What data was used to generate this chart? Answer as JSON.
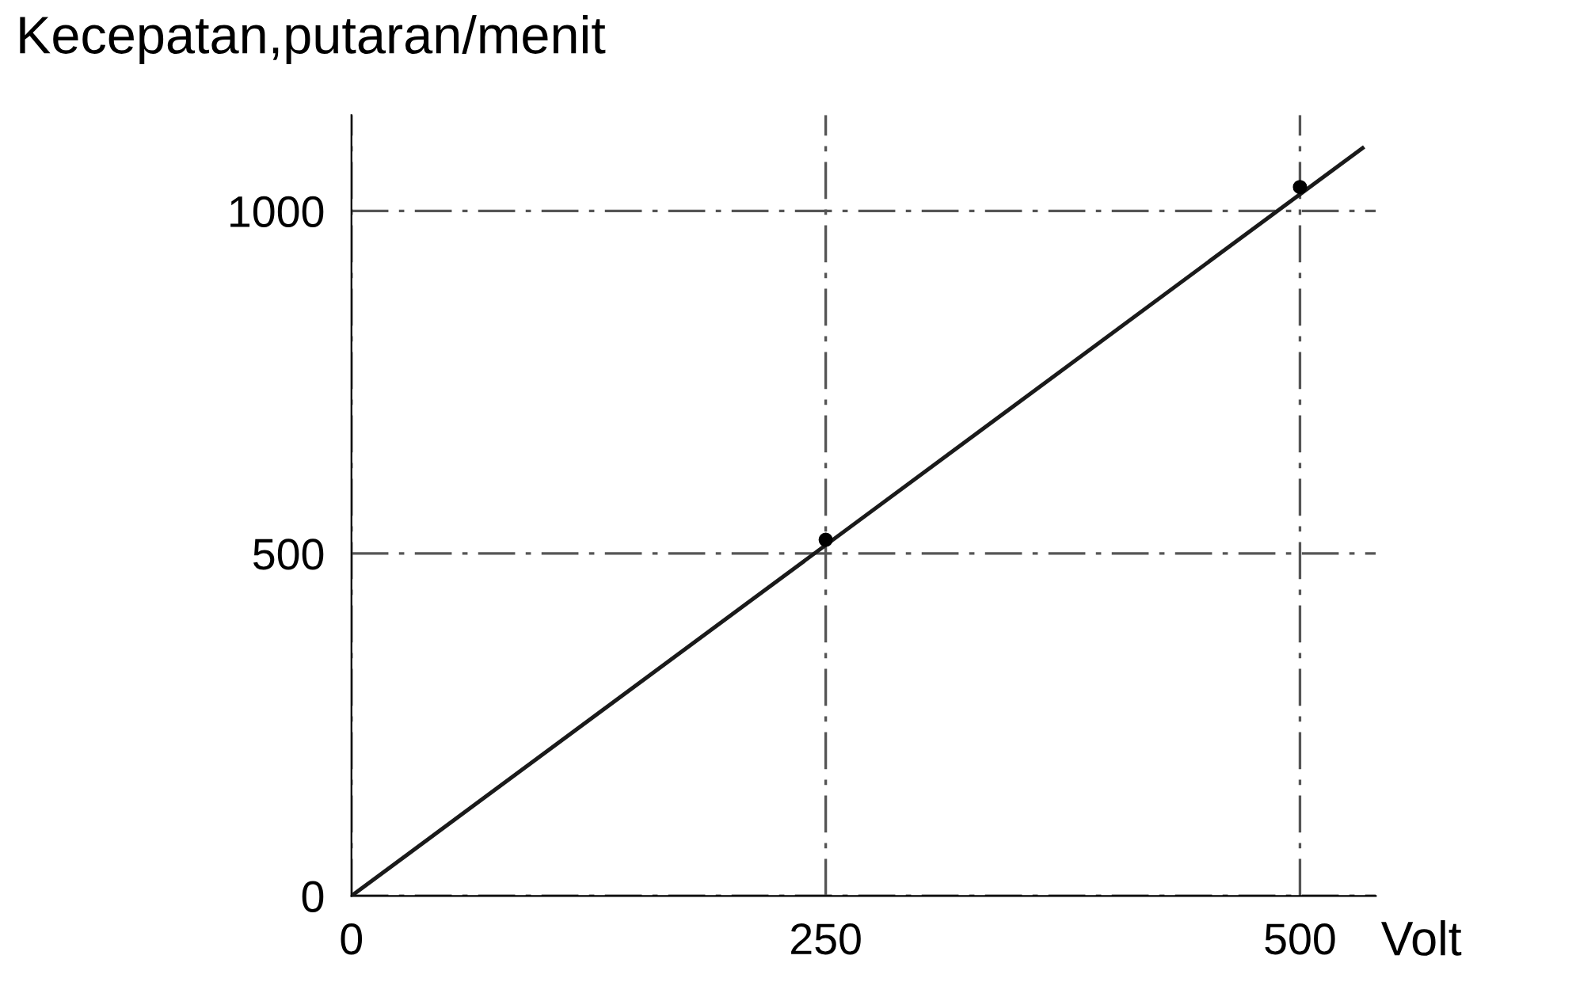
{
  "chart_data": {
    "type": "line",
    "xlabel": "Volt",
    "ylabel": "Kecepatan,putaran/menit",
    "series": [
      {
        "color": "#1a1a1a",
        "x": [
          0,
          533
        ],
        "values": [
          0,
          1092
        ]
      },
      {
        "type": "scatter",
        "color": "#000000",
        "x": [
          250,
          500
        ],
        "values": [
          520,
          1035
        ]
      }
    ],
    "xlim": [
      0,
      540
    ],
    "ylim": [
      0,
      1140
    ],
    "xticks": [
      0,
      250,
      500
    ],
    "yticks": [
      0,
      500,
      1000
    ],
    "grid": true,
    "legend": false
  }
}
